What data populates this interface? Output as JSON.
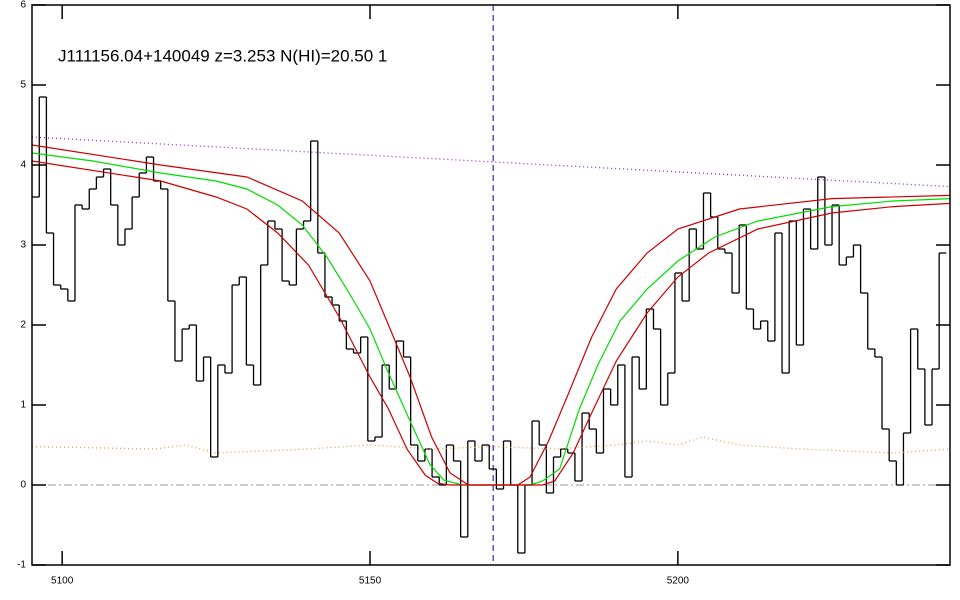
{
  "chart_data": {
    "type": "line",
    "title": "J111156.04+140049 z=3.253 N(HI)=20.50 1",
    "xlim": [
      5095.1,
      5244.2
    ],
    "ylim": [
      -1,
      6
    ],
    "xticks": [
      5100,
      5150,
      5200
    ],
    "yticks": [
      -1,
      0,
      1,
      2,
      3,
      4,
      5,
      6
    ],
    "series": [
      {
        "color": "#000000",
        "style": "step",
        "x": [
          5095.7,
          5096.86,
          5098.02,
          5099.18,
          5100.34,
          5101.5,
          5102.66,
          5103.82,
          5104.98,
          5106.14,
          5107.3,
          5108.46,
          5109.62,
          5110.78,
          5111.94,
          5113.1,
          5114.26,
          5115.42,
          5116.58,
          5117.74,
          5118.9,
          5120.06,
          5121.22,
          5122.38,
          5123.54,
          5124.7,
          5125.86,
          5127.02,
          5128.18,
          5129.34,
          5130.5,
          5131.66,
          5132.82,
          5133.98,
          5135.14,
          5136.3,
          5137.46,
          5138.62,
          5139.78,
          5140.94,
          5142.1,
          5143.26,
          5144.42,
          5145.58,
          5146.74,
          5147.9,
          5149.06,
          5150.22,
          5151.38,
          5152.54,
          5153.7,
          5154.86,
          5156.02,
          5157.18,
          5158.34,
          5159.5,
          5160.66,
          5161.82,
          5162.98,
          5164.14,
          5165.3,
          5166.46,
          5167.62,
          5168.78,
          5169.94,
          5171.1,
          5172.26,
          5173.42,
          5174.58,
          5175.74,
          5176.9,
          5178.06,
          5179.22,
          5180.38,
          5181.54,
          5182.7,
          5183.86,
          5185.02,
          5186.18,
          5187.34,
          5188.5,
          5189.66,
          5190.82,
          5191.98,
          5193.14,
          5194.3,
          5195.46,
          5196.62,
          5197.78,
          5198.94,
          5200.1,
          5201.26,
          5202.42,
          5203.58,
          5204.74,
          5205.9,
          5207.06,
          5208.22,
          5209.38,
          5210.54,
          5211.7,
          5212.86,
          5214.02,
          5215.18,
          5216.34,
          5217.5,
          5218.66,
          5219.82,
          5220.98,
          5222.14,
          5223.3,
          5224.46,
          5225.62,
          5226.78,
          5227.94,
          5229.1,
          5230.26,
          5231.42,
          5232.58,
          5233.74,
          5234.9,
          5236.06,
          5237.22,
          5238.38,
          5239.54,
          5240.7,
          5241.86,
          5243.02
        ],
        "values": [
          3.6,
          4.85,
          3.15,
          2.5,
          2.45,
          2.3,
          3.5,
          3.45,
          3.7,
          3.85,
          3.95,
          3.5,
          3.0,
          3.2,
          3.6,
          3.9,
          4.1,
          3.8,
          3.7,
          2.3,
          1.55,
          1.95,
          2.0,
          1.3,
          1.6,
          0.35,
          1.5,
          1.4,
          2.5,
          2.6,
          1.5,
          1.25,
          2.75,
          3.3,
          3.2,
          2.55,
          2.5,
          3.2,
          3.3,
          4.3,
          2.9,
          2.35,
          2.25,
          2.05,
          1.7,
          1.65,
          1.85,
          0.55,
          0.6,
          1.5,
          1.2,
          1.8,
          1.6,
          0.5,
          0.3,
          0.45,
          0.1,
          0.0,
          0.5,
          0.3,
          -0.65,
          0.55,
          0.3,
          0.5,
          0.2,
          -0.05,
          0.55,
          0.0,
          -0.85,
          0.0,
          0.8,
          0.5,
          -0.1,
          0.35,
          0.45,
          0.4,
          0.05,
          0.9,
          0.7,
          0.4,
          1.2,
          1.0,
          1.5,
          0.1,
          1.6,
          1.2,
          2.2,
          1.95,
          1.0,
          1.4,
          2.65,
          2.3,
          3.2,
          2.95,
          3.65,
          3.35,
          2.95,
          2.9,
          2.4,
          3.25,
          2.2,
          1.95,
          2.05,
          1.8,
          3.15,
          1.4,
          3.3,
          1.75,
          3.45,
          2.95,
          3.85,
          3.0,
          3.5,
          2.75,
          2.85,
          3.0,
          2.4,
          1.7,
          1.6,
          0.7,
          0.3,
          0.0,
          0.65,
          1.95,
          1.45,
          0.75,
          1.45,
          2.9
        ]
      },
      {
        "color": "#a020f0",
        "style": "dotted",
        "x": [
          5095.1,
          5244.2
        ],
        "values": [
          4.35,
          3.73
        ]
      },
      {
        "color": "#e0a050",
        "style": "dotted",
        "x": [
          5095.1,
          5115,
          5120,
          5125,
          5140,
          5150,
          5160,
          5170,
          5180,
          5190,
          5195,
          5200,
          5204,
          5210,
          5220,
          5235,
          5244.2
        ],
        "values": [
          0.48,
          0.45,
          0.5,
          0.4,
          0.45,
          0.5,
          0.45,
          0.48,
          0.45,
          0.5,
          0.55,
          0.5,
          0.6,
          0.5,
          0.45,
          0.4,
          0.45
        ]
      },
      {
        "color": "#00dd00",
        "style": "solid",
        "x": [
          5095.1,
          5105,
          5116,
          5125,
          5130,
          5135,
          5139,
          5143,
          5147,
          5150,
          5153,
          5156.5,
          5159.7,
          5162,
          5165,
          5176,
          5178,
          5180.8,
          5184,
          5187,
          5190.6,
          5195,
          5200,
          5206,
          5213,
          5225,
          5235,
          5244.2
        ],
        "values": [
          4.15,
          4.05,
          3.9,
          3.8,
          3.7,
          3.5,
          3.25,
          2.85,
          2.35,
          1.95,
          1.4,
          0.8,
          0.26,
          0.06,
          0,
          0,
          0.05,
          0.2,
          0.95,
          1.5,
          2.05,
          2.45,
          2.8,
          3.1,
          3.3,
          3.48,
          3.55,
          3.58
        ]
      },
      {
        "color": "#cc0000",
        "style": "solid",
        "x": [
          5095.1,
          5116,
          5130,
          5139,
          5145,
          5150,
          5153,
          5156.5,
          5160,
          5163,
          5166,
          5174,
          5176,
          5179,
          5182,
          5186,
          5190,
          5195,
          5200,
          5210,
          5225,
          5244.2
        ],
        "values": [
          4.25,
          4.0,
          3.85,
          3.55,
          3.15,
          2.55,
          2.0,
          1.35,
          0.6,
          0.15,
          0,
          0,
          0.1,
          0.55,
          1.1,
          1.85,
          2.45,
          2.9,
          3.2,
          3.45,
          3.58,
          3.62
        ]
      },
      {
        "color": "#cc0000",
        "style": "solid",
        "x": [
          5095.1,
          5116,
          5125,
          5130,
          5135,
          5140,
          5145,
          5150,
          5153,
          5156,
          5159,
          5161,
          5163,
          5178,
          5180,
          5183,
          5186,
          5190,
          5195,
          5200,
          5205,
          5213,
          5225,
          5235,
          5244.2
        ],
        "values": [
          4.05,
          3.8,
          3.6,
          3.45,
          3.15,
          2.75,
          2.1,
          1.35,
          0.95,
          0.45,
          0.12,
          0.02,
          0,
          0,
          0.05,
          0.4,
          0.9,
          1.55,
          2.15,
          2.6,
          2.9,
          3.2,
          3.4,
          3.48,
          3.52
        ]
      }
    ],
    "hlines": [
      {
        "value": 0,
        "color": "#999999",
        "style": "dashdot"
      }
    ],
    "vlines": [
      {
        "value": 5170,
        "color": "#0000aa",
        "style": "dashed"
      }
    ]
  }
}
